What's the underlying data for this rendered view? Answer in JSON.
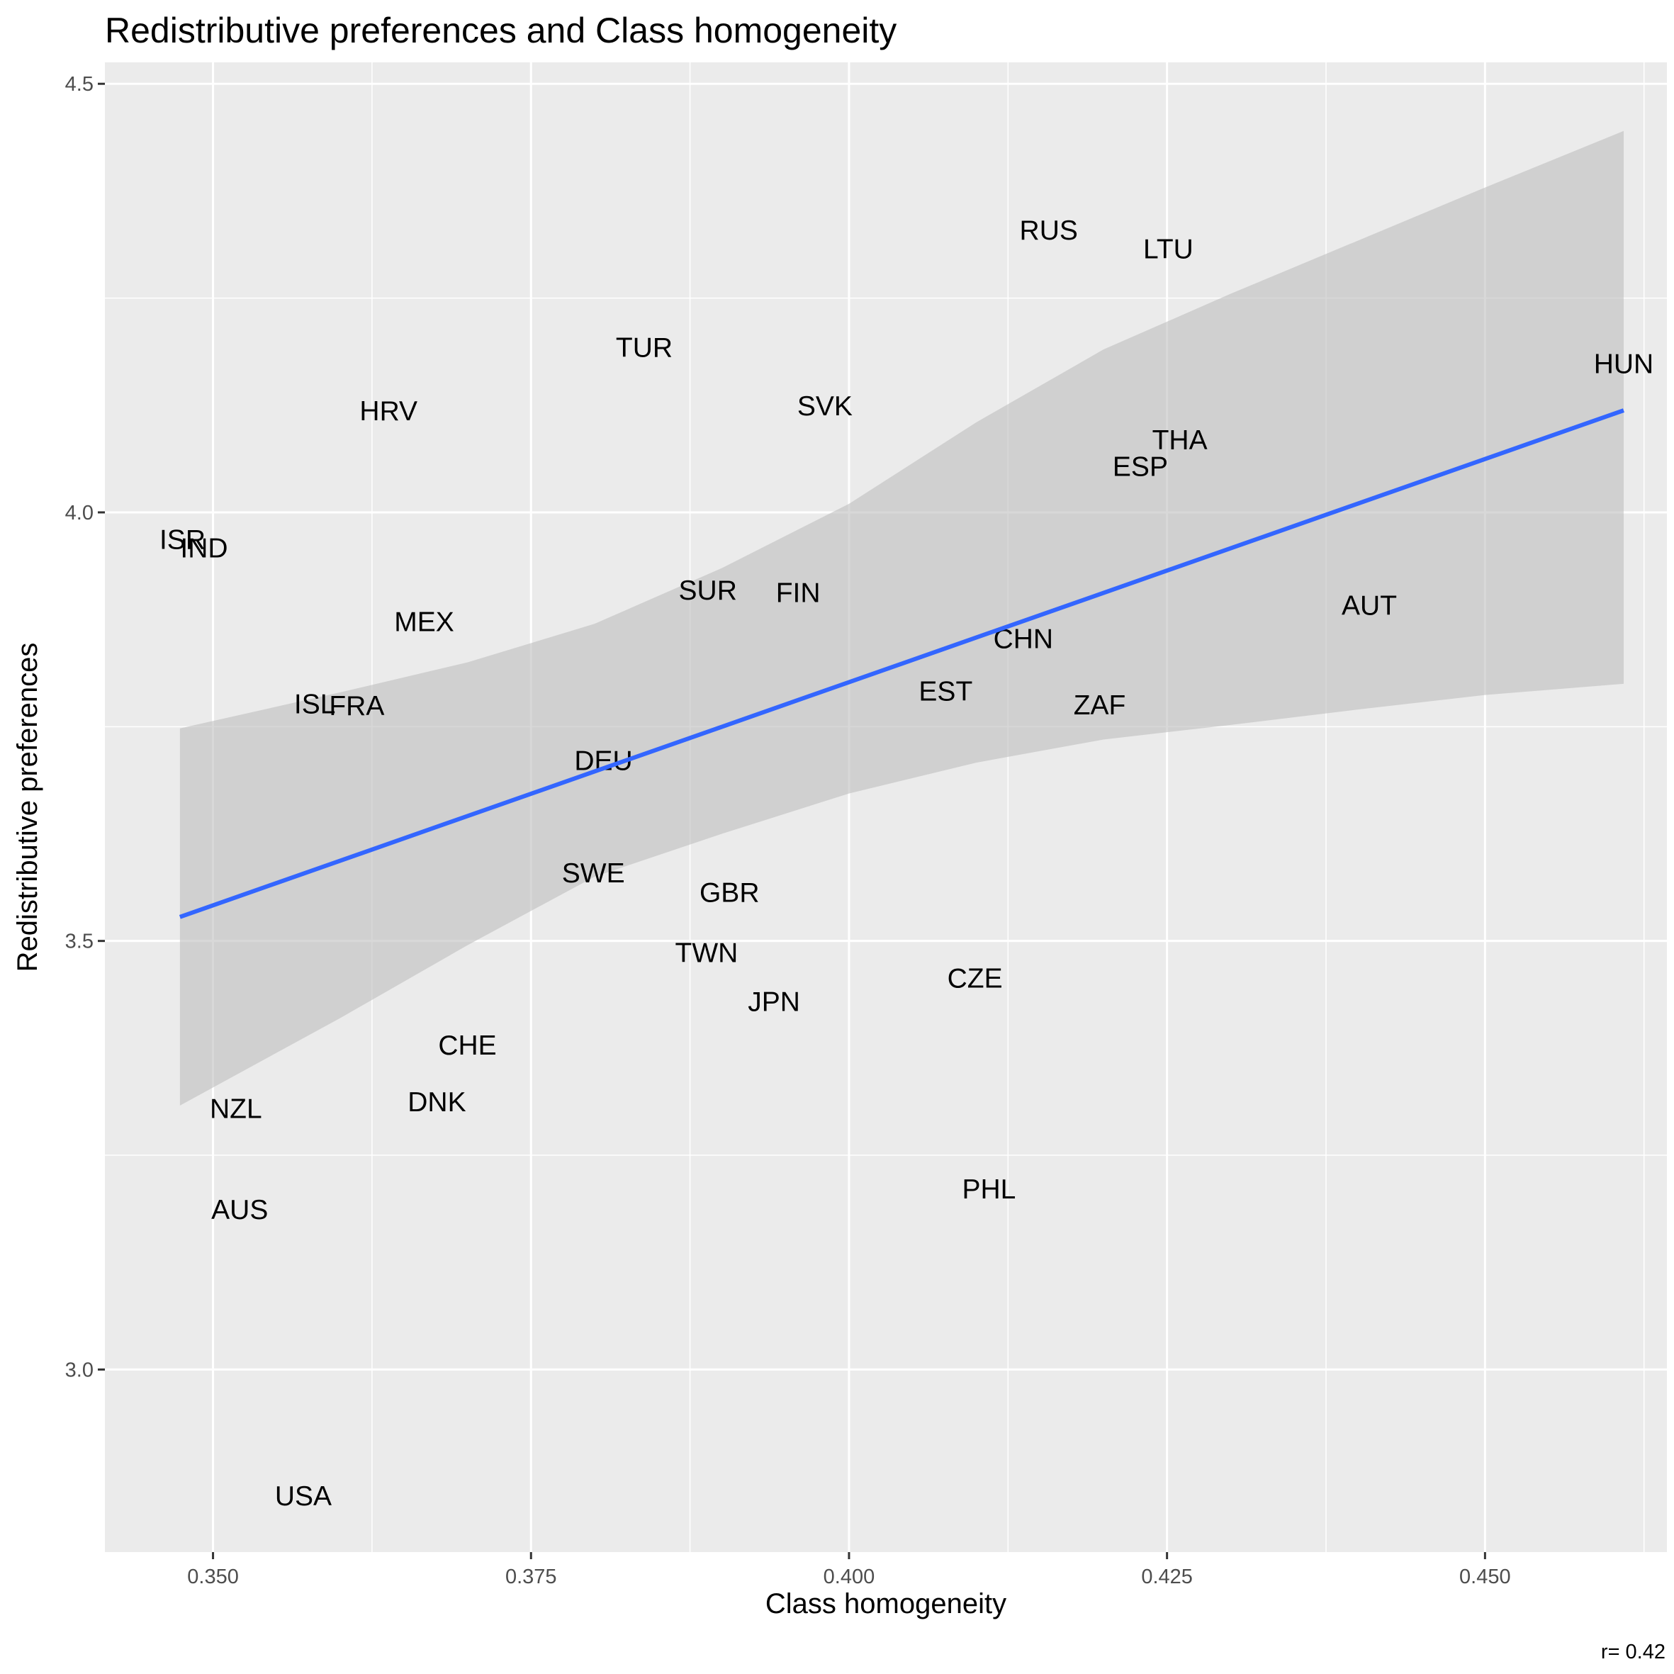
{
  "chart_data": {
    "type": "scatter",
    "title": "Redistributive preferences and Class homogeneity",
    "xlabel": "Class homogeneity",
    "ylabel": "Redistributive preferences",
    "caption": "r= 0.42",
    "xlim": [
      0.3415,
      0.4643
    ],
    "ylim": [
      2.787,
      4.525
    ],
    "x_ticks": [
      0.35,
      0.375,
      0.4,
      0.425,
      0.45
    ],
    "x_tick_labels": [
      "0.350",
      "0.375",
      "0.400",
      "0.425",
      "0.450"
    ],
    "y_ticks": [
      3.0,
      3.5,
      4.0,
      4.5
    ],
    "y_tick_labels": [
      "3.0",
      "3.5",
      "4.0",
      "4.5"
    ],
    "grid": true,
    "label_color": "#000000",
    "trend_color": "#3366FF",
    "ribbon_color": "#BEBEBE",
    "panel_color": "#EBEBEB",
    "grid_color": "#FFFFFF",
    "points": [
      {
        "label": "RUS",
        "x": 0.4157,
        "y": 4.33
      },
      {
        "label": "LTU",
        "x": 0.4251,
        "y": 4.308
      },
      {
        "label": "TUR",
        "x": 0.3839,
        "y": 4.193
      },
      {
        "label": "HUN",
        "x": 0.4609,
        "y": 4.174
      },
      {
        "label": "HRV",
        "x": 0.3638,
        "y": 4.119
      },
      {
        "label": "SVK",
        "x": 0.3981,
        "y": 4.125
      },
      {
        "label": "THA",
        "x": 0.426,
        "y": 4.085
      },
      {
        "label": "ESP",
        "x": 0.4229,
        "y": 4.054
      },
      {
        "label": "ISR",
        "x": 0.3476,
        "y": 3.969
      },
      {
        "label": "IND",
        "x": 0.3493,
        "y": 3.959
      },
      {
        "label": "SUR",
        "x": 0.3889,
        "y": 3.91
      },
      {
        "label": "FIN",
        "x": 0.396,
        "y": 3.907
      },
      {
        "label": "AUT",
        "x": 0.4409,
        "y": 3.892
      },
      {
        "label": "MEX",
        "x": 0.3666,
        "y": 3.873
      },
      {
        "label": "CHN",
        "x": 0.4137,
        "y": 3.853
      },
      {
        "label": "EST",
        "x": 0.4076,
        "y": 3.792
      },
      {
        "label": "ZAF",
        "x": 0.4197,
        "y": 3.776
      },
      {
        "label": "ISL",
        "x": 0.358,
        "y": 3.777
      },
      {
        "label": "FRA",
        "x": 0.3613,
        "y": 3.775
      },
      {
        "label": "DEU",
        "x": 0.3807,
        "y": 3.711
      },
      {
        "label": "SWE",
        "x": 0.3799,
        "y": 3.58
      },
      {
        "label": "GBR",
        "x": 0.3906,
        "y": 3.557
      },
      {
        "label": "TWN",
        "x": 0.3888,
        "y": 3.487
      },
      {
        "label": "CZE",
        "x": 0.4099,
        "y": 3.457
      },
      {
        "label": "JPN",
        "x": 0.3941,
        "y": 3.43
      },
      {
        "label": "CHE",
        "x": 0.37,
        "y": 3.379
      },
      {
        "label": "DNK",
        "x": 0.3676,
        "y": 3.313
      },
      {
        "label": "NZL",
        "x": 0.3518,
        "y": 3.305
      },
      {
        "label": "PHL",
        "x": 0.411,
        "y": 3.211
      },
      {
        "label": "AUS",
        "x": 0.3521,
        "y": 3.187
      },
      {
        "label": "USA",
        "x": 0.3571,
        "y": 2.853
      }
    ],
    "trend_line": {
      "x": [
        0.3474,
        0.4609
      ],
      "y": [
        3.528,
        4.119
      ]
    },
    "confidence_band": {
      "x": [
        0.3474,
        0.36,
        0.37,
        0.38,
        0.39,
        0.4,
        0.41,
        0.42,
        0.43,
        0.44,
        0.45,
        0.4609
      ],
      "upper": [
        3.748,
        3.79,
        3.825,
        3.87,
        3.935,
        4.01,
        4.105,
        4.19,
        4.255,
        4.317,
        4.379,
        4.445
      ],
      "lower": [
        3.308,
        3.41,
        3.495,
        3.575,
        3.625,
        3.672,
        3.708,
        3.735,
        3.752,
        3.77,
        3.787,
        3.8
      ]
    }
  }
}
